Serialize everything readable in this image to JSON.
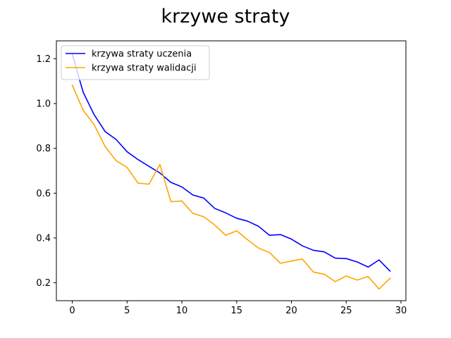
{
  "chart_data": {
    "type": "line",
    "title": "krzywe straty",
    "xlabel": "",
    "ylabel": "",
    "xlim": [
      -1.45,
      30.45
    ],
    "ylim": [
      0.12,
      1.28
    ],
    "xticks": [
      0,
      5,
      10,
      15,
      20,
      25,
      30
    ],
    "yticks": [
      0.2,
      0.4,
      0.6,
      0.8,
      1.0,
      1.2
    ],
    "xtick_labels": [
      "0",
      "5",
      "10",
      "15",
      "20",
      "25",
      "30"
    ],
    "ytick_labels": [
      "0.2",
      "0.4",
      "0.6",
      "0.8",
      "1.0",
      "1.2"
    ],
    "grid": false,
    "legend_position": "top-left",
    "x": [
      0,
      1,
      2,
      3,
      4,
      5,
      6,
      7,
      8,
      9,
      10,
      11,
      12,
      13,
      14,
      15,
      16,
      17,
      18,
      19,
      20,
      21,
      22,
      23,
      24,
      25,
      26,
      27,
      28,
      29
    ],
    "series": [
      {
        "name": "krzywa straty uczenia",
        "color": "#0000ff",
        "values": [
          1.22,
          1.05,
          0.95,
          0.875,
          0.84,
          0.785,
          0.75,
          0.72,
          0.69,
          0.648,
          0.628,
          0.592,
          0.578,
          0.532,
          0.512,
          0.488,
          0.475,
          0.452,
          0.412,
          0.415,
          0.395,
          0.365,
          0.345,
          0.338,
          0.31,
          0.308,
          0.293,
          0.27,
          0.302,
          0.252
        ]
      },
      {
        "name": "krzywa straty walidacji",
        "color": "#ffa500",
        "values": [
          1.082,
          0.97,
          0.905,
          0.808,
          0.745,
          0.715,
          0.645,
          0.64,
          0.728,
          0.562,
          0.565,
          0.51,
          0.495,
          0.458,
          0.412,
          0.432,
          0.392,
          0.355,
          0.335,
          0.287,
          0.297,
          0.306,
          0.248,
          0.238,
          0.205,
          0.23,
          0.212,
          0.228,
          0.172,
          0.22
        ]
      }
    ]
  }
}
